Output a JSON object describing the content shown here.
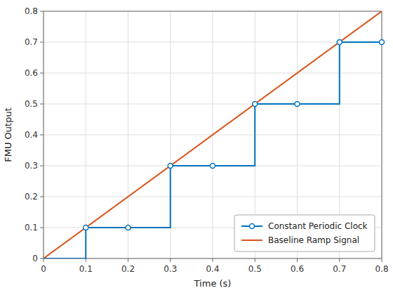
{
  "chart_data": {
    "type": "line",
    "xlabel": "Time (s)",
    "ylabel": "FMU Output",
    "xlim": [
      0,
      0.8
    ],
    "ylim": [
      0,
      0.8
    ],
    "xticks": [
      0,
      0.1,
      0.2,
      0.3,
      0.4,
      0.5,
      0.6,
      0.7,
      0.8
    ],
    "yticks": [
      0,
      0.1,
      0.2,
      0.3,
      0.4,
      0.5,
      0.6,
      0.7,
      0.8
    ],
    "grid": true,
    "legend": "lower right",
    "series": [
      {
        "name": "Constant Periodic Clock",
        "color": "#0072BD",
        "marker": "circle",
        "x": [
          0,
          0.1,
          0.1,
          0.2,
          0.3,
          0.3,
          0.4,
          0.5,
          0.5,
          0.6,
          0.7,
          0.7,
          0.8
        ],
        "values": [
          0,
          0,
          0.1,
          0.1,
          0.1,
          0.3,
          0.3,
          0.3,
          0.5,
          0.5,
          0.5,
          0.7,
          0.7
        ],
        "marker_points": {
          "x": [
            0.1,
            0.2,
            0.3,
            0.4,
            0.5,
            0.6,
            0.7,
            0.8
          ],
          "values": [
            0.1,
            0.1,
            0.3,
            0.3,
            0.5,
            0.5,
            0.7,
            0.7
          ]
        }
      },
      {
        "name": "Baseline Ramp Signal",
        "color": "#D95319",
        "x": [
          0,
          0.8
        ],
        "values": [
          0,
          0.8
        ]
      }
    ]
  }
}
